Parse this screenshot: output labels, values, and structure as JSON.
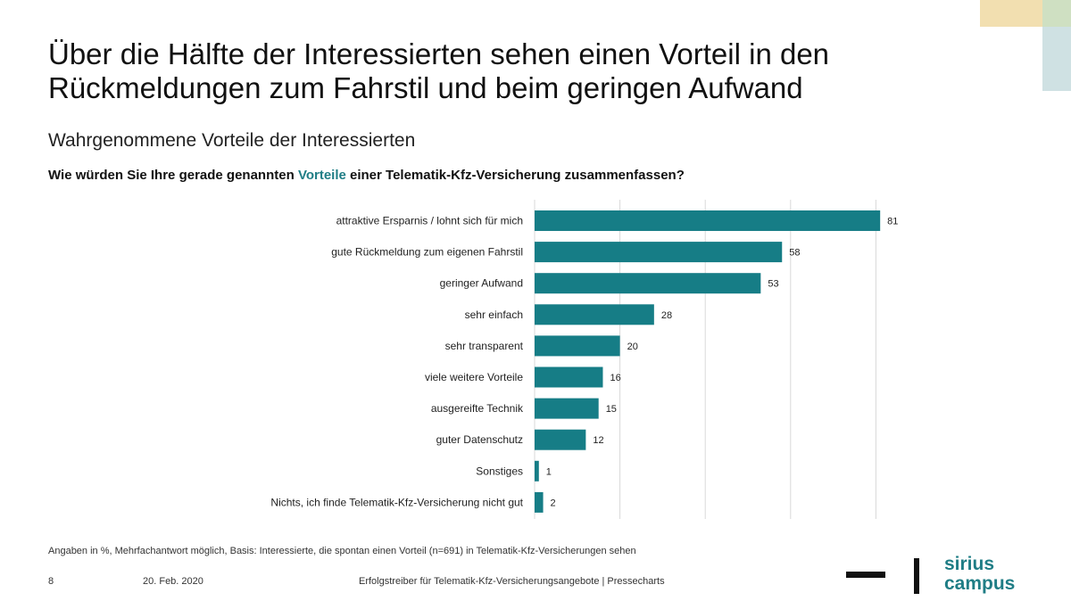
{
  "slide": {
    "title_line1": "Über die Hälfte der Interessierten sehen einen Vorteil in den",
    "title_line2": "Rückmeldungen zum Fahrstil und beim geringen Aufwand",
    "subtitle": "Wahrgenommene Vorteile der Interessierten",
    "question_before": "Wie würden Sie Ihre gerade genannten ",
    "question_highlight": "Vorteile",
    "question_after": " einer Telematik-Kfz-Versicherung zusammenfassen?",
    "footnote": "Angaben in %, Mehrfachantwort möglich, Basis: Interessierte, die spontan einen Vorteil (n=691) in Telematik-Kfz-Versicherungen sehen",
    "page_number": "8",
    "date": "20. Feb. 2020",
    "footer_title": "Erfolgstreiber für Telematik-Kfz-Versicherungsangebote | Pressecharts",
    "logo_line1": "sirius",
    "logo_line2": "campus"
  },
  "colors": {
    "bar": "#167d86",
    "accent": "#1f7d85",
    "gridline": "#d9d9d9"
  },
  "chart_data": {
    "type": "bar",
    "orientation": "horizontal",
    "categories": [
      "attraktive Ersparnis / lohnt sich für mich",
      "gute Rückmeldung zum eigenen Fahrstil",
      "geringer Aufwand",
      "sehr einfach",
      "sehr transparent",
      "viele weitere Vorteile",
      "ausgereifte Technik",
      "guter Datenschutz",
      "Sonstiges",
      "Nichts, ich finde Telematik-Kfz-Versicherung nicht gut"
    ],
    "values": [
      81,
      58,
      53,
      28,
      20,
      16,
      15,
      12,
      1,
      2
    ],
    "xlim": [
      0,
      80
    ],
    "grid": true,
    "data_labels": true,
    "unit": "%"
  }
}
